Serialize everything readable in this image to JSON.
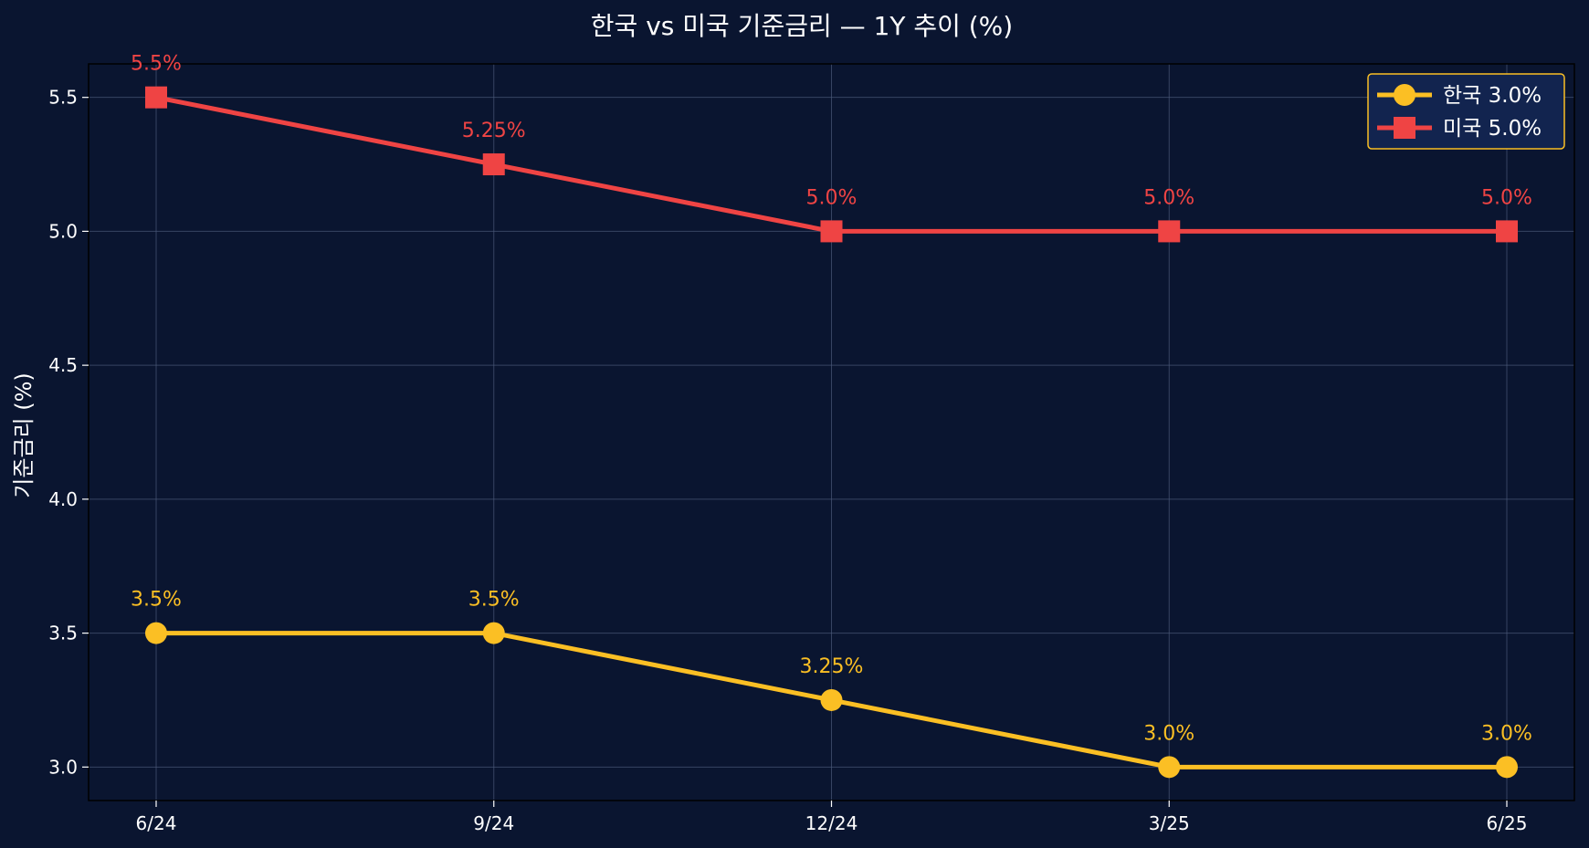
{
  "chart_data": {
    "type": "line",
    "title": "한국 vs 미국 기준금리 — 1Y 추이 (%)",
    "xlabel": "",
    "ylabel": "기준금리 (%)",
    "categories": [
      "6/24",
      "9/24",
      "12/24",
      "3/25",
      "6/25"
    ],
    "ylim": [
      2.875,
      5.625
    ],
    "yticks": [
      3.0,
      3.5,
      4.0,
      4.5,
      5.0,
      5.5
    ],
    "ytick_labels": [
      "3.0",
      "3.5",
      "4.0",
      "4.5",
      "5.0",
      "5.5"
    ],
    "grid": true,
    "legend_position": "top-right",
    "series": [
      {
        "name": "한국 3.0%",
        "values": [
          3.5,
          3.5,
          3.25,
          3.0,
          3.0
        ],
        "labels": [
          "3.5%",
          "3.5%",
          "3.25%",
          "3.0%",
          "3.0%"
        ],
        "color": "#fbbf24",
        "marker": "circle"
      },
      {
        "name": "미국 5.0%",
        "values": [
          5.5,
          5.25,
          5.0,
          5.0,
          5.0
        ],
        "labels": [
          "5.5%",
          "5.25%",
          "5.0%",
          "5.0%",
          "5.0%"
        ],
        "color": "#ef4444",
        "marker": "square"
      }
    ],
    "colors": {
      "background": "#0a1530",
      "plot_border": "#000000",
      "grid": "#4a5878",
      "text": "#ffffff",
      "legend_background": "#12244f",
      "legend_border": "#fbbf24"
    }
  }
}
